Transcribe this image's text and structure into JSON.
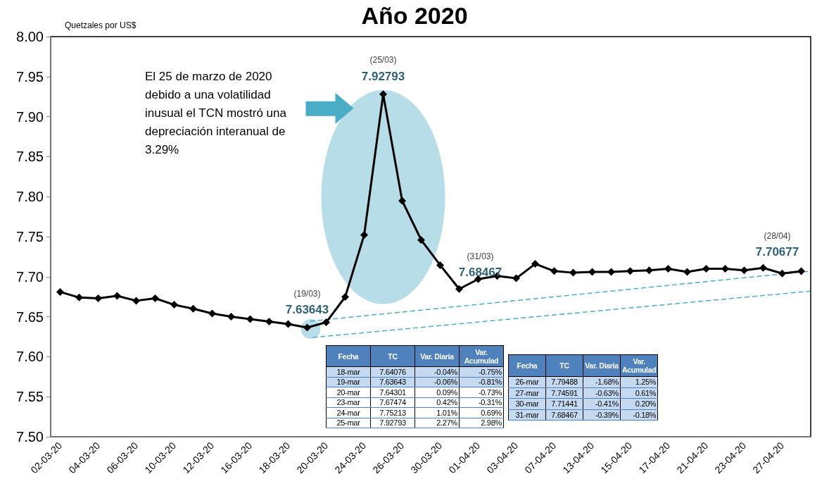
{
  "chart_data": {
    "type": "line",
    "title": "Año 2020",
    "ylabel": "Quetzales por US$",
    "categories": [
      "02-03-20",
      null,
      "04-03-20",
      null,
      "06-03-20",
      null,
      "10-03-20",
      null,
      "12-03-20",
      null,
      "16-03-20",
      null,
      "18-03-20",
      null,
      "20-03-20",
      null,
      "24-03-20",
      null,
      "26-03-20",
      null,
      "30-03-20",
      null,
      "01-04-20",
      null,
      "03-04-20",
      null,
      "07-04-20",
      null,
      "13-04-20",
      null,
      "15-04-20",
      null,
      "17-04-20",
      null,
      "21-04-20",
      null,
      "23-04-20",
      null,
      "27-04-20",
      null
    ],
    "values": [
      7.681,
      7.674,
      7.673,
      7.676,
      7.67,
      7.673,
      7.665,
      7.66,
      7.654,
      7.65,
      7.647,
      7.644,
      7.64076,
      7.63643,
      7.64301,
      7.67474,
      7.75213,
      7.92793,
      7.79488,
      7.74591,
      7.71441,
      7.68467,
      7.697,
      7.701,
      7.698,
      7.716,
      7.707,
      7.705,
      7.706,
      7.706,
      7.707,
      7.708,
      7.71,
      7.706,
      7.71,
      7.71,
      7.708,
      7.711,
      7.704,
      7.70677
    ],
    "value_labels": [
      null,
      null,
      null,
      null,
      null,
      null,
      null,
      null,
      null,
      null,
      null,
      null,
      null,
      "7.63643",
      null,
      null,
      null,
      "7.92793",
      null,
      null,
      null,
      "7.68467",
      null,
      null,
      null,
      null,
      null,
      null,
      null,
      null,
      null,
      null,
      null,
      null,
      null,
      null,
      null,
      null,
      null,
      "7.70677"
    ],
    "color": "#000000",
    "marker": "diamond",
    "line_style": "solid",
    "ylim": [
      7.5,
      8.0
    ],
    "yticks": [
      {
        "value": 7.5,
        "label": "7.50"
      },
      {
        "value": 7.55,
        "label": "7.55"
      },
      {
        "value": 7.6,
        "label": "7.60"
      },
      {
        "value": 7.65,
        "label": "7.65"
      },
      {
        "value": 7.7,
        "label": "7.70"
      },
      {
        "value": 7.75,
        "label": "7.75"
      },
      {
        "value": 7.8,
        "label": "7.80"
      },
      {
        "value": 7.85,
        "label": "7.85"
      },
      {
        "value": 7.9,
        "label": "7.90"
      },
      {
        "value": 7.95,
        "label": "7.95"
      },
      {
        "value": 8.0,
        "label": "8.00"
      }
    ],
    "annotations": [
      "El 25 de marzo de 2020 debido a una volatilidad inusual el TCN mostró una depreciación interanual de 3.29%",
      "(19/03)",
      "(25/03)",
      "(31/03)",
      "(28/04)",
      "Fecha",
      "TC",
      "Var. Diaria",
      "Var. Acumulad",
      "18-mar",
      "7.64076",
      "-0.04%",
      "-0.75%",
      "19-mar",
      "7.63643",
      "-0.06%",
      "-0.81%",
      "20-mar",
      "7.64301",
      "0.09%",
      "-0.73%",
      "23-mar",
      "7.67474",
      "0.42%",
      "-0.31%",
      "24-mar",
      "7.75213",
      "1.01%",
      "0.69%",
      "25-mar",
      "7.92793",
      "2.27%",
      "2.98%",
      "Fecha",
      "TC",
      "Var. Diaria",
      "Var. Acumulad",
      "26-mar",
      "7.79488",
      "-1.68%",
      "1.25%",
      "27-mar",
      "7.74591",
      "-0.63%",
      "0.61%",
      "30-mar",
      "7.71441",
      "-0.41%",
      "0.20%",
      "31-mar",
      "7.68467",
      "-0.39%",
      "-0.18%"
    ]
  }
}
